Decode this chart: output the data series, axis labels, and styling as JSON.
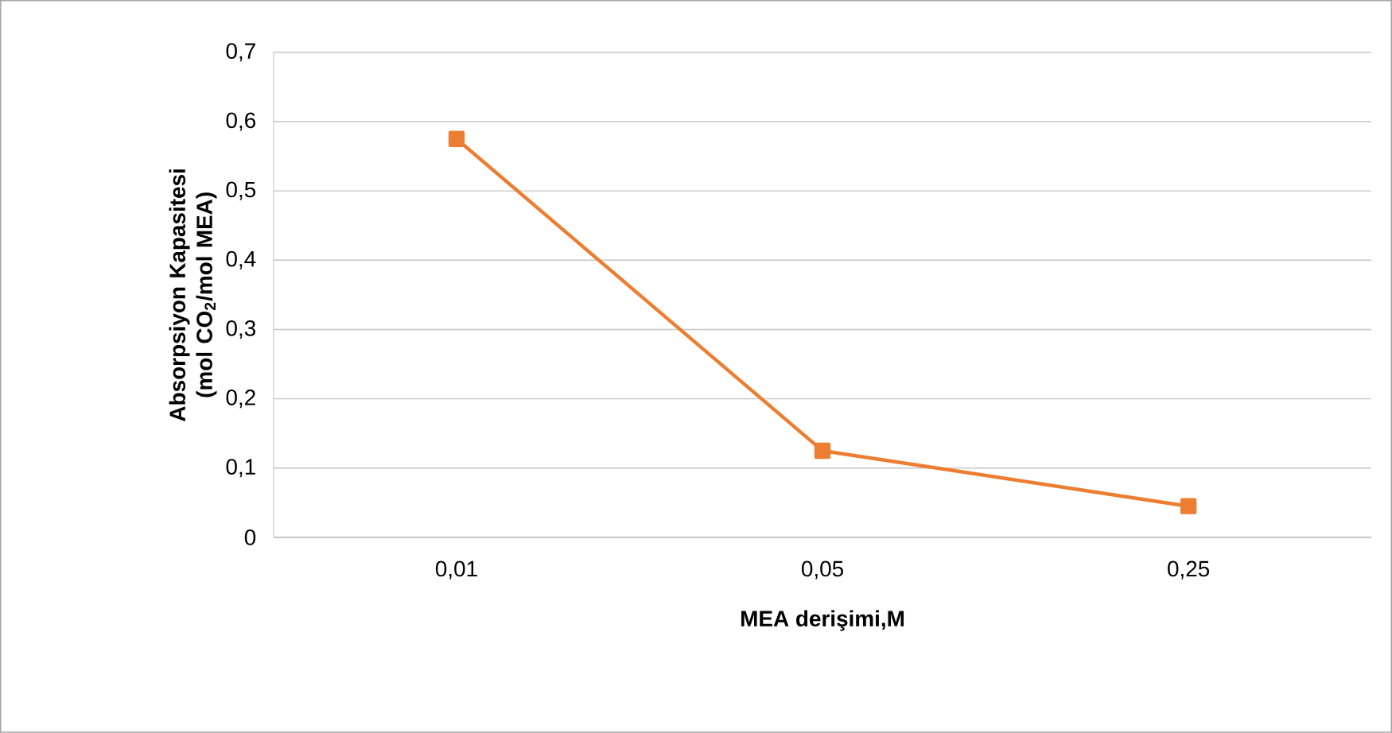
{
  "chart_data": {
    "type": "line",
    "xlabel": "MEA derişimi,M",
    "ylabel": "Absorpsiyon Kapasitesi (mol CO$_{2}$/mol MEA)",
    "categories": [
      "0,01",
      "0,05",
      "0,25"
    ],
    "series": [
      {
        "color": "#ed7d31",
        "values": [
          0.575,
          0.125,
          0.045
        ]
      }
    ],
    "ylim": [
      0,
      0.7
    ],
    "yticks": [
      {
        "value": 0,
        "label": "0"
      },
      {
        "value": 0.1,
        "label": "0,1"
      },
      {
        "value": 0.2,
        "label": "0,2"
      },
      {
        "value": 0.3,
        "label": "0,3"
      },
      {
        "value": 0.4,
        "label": "0,4"
      },
      {
        "value": 0.5,
        "label": "0,5"
      },
      {
        "value": 0.6,
        "label": "0,6"
      },
      {
        "value": 0.7,
        "label": "0,7"
      }
    ],
    "grid": "y",
    "marker": "square",
    "line_style": "solid"
  }
}
